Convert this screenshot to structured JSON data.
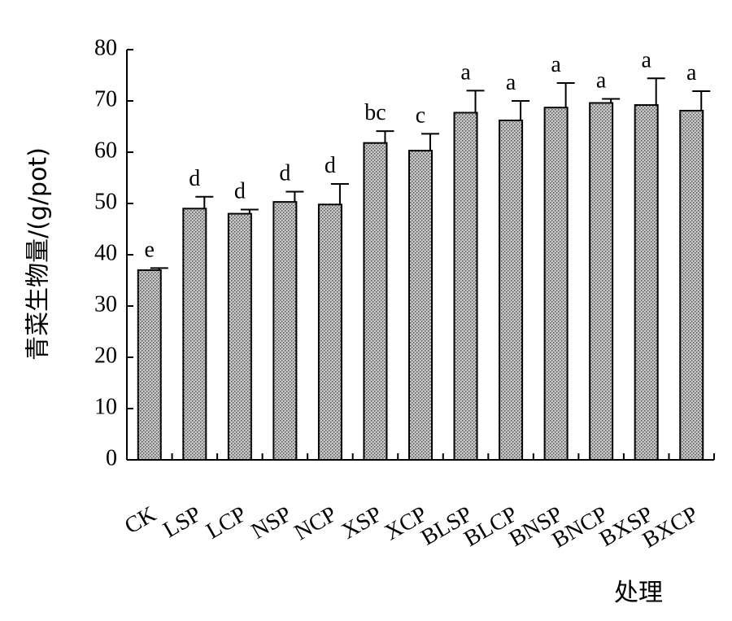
{
  "chart_data": {
    "type": "bar",
    "ylabel": "青菜生物量/(g/pot)",
    "xlabel": "处理",
    "ylim": [
      0,
      80
    ],
    "yticks": [
      0,
      10,
      20,
      30,
      40,
      50,
      60,
      70,
      80
    ],
    "categories": [
      "CK",
      "LSP",
      "LCP",
      "NSP",
      "NCP",
      "XSP",
      "XCP",
      "BLSP",
      "BLCP",
      "BNSP",
      "BNCP",
      "BXSP",
      "BXCP"
    ],
    "values": [
      37.0,
      49.0,
      48.0,
      50.3,
      49.8,
      61.8,
      60.3,
      67.7,
      66.2,
      68.7,
      69.6,
      69.2,
      68.1
    ],
    "errors": [
      0.4,
      2.3,
      0.8,
      2.0,
      4.0,
      2.3,
      3.3,
      4.3,
      3.8,
      4.8,
      0.8,
      5.2,
      3.8
    ],
    "significance": [
      "e",
      "d",
      "d",
      "d",
      "d",
      "bc",
      "c",
      "a",
      "a",
      "a",
      "a",
      "a",
      "a"
    ],
    "grid": false,
    "legend": "none"
  }
}
